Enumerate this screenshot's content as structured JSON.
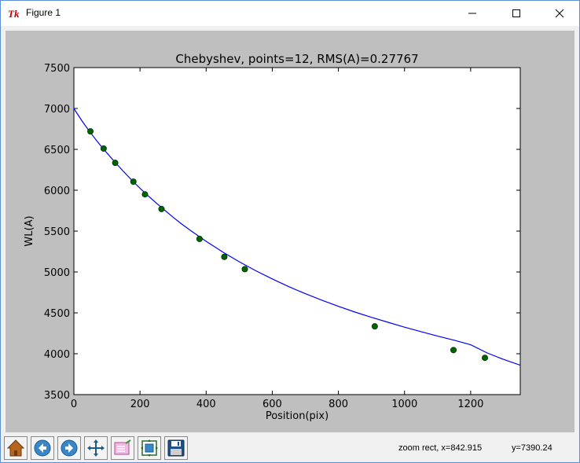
{
  "window": {
    "title": "Figure 1",
    "icon": "tk-feather-icon",
    "controls": [
      "minimize-icon",
      "maximize-icon",
      "close-icon"
    ]
  },
  "toolbar": {
    "buttons": [
      {
        "name": "home-button",
        "icon": "home-icon"
      },
      {
        "name": "back-button",
        "icon": "arrow-left-icon"
      },
      {
        "name": "forward-button",
        "icon": "arrow-right-icon"
      },
      {
        "name": "pan-button",
        "icon": "move-arrows-icon"
      },
      {
        "name": "zoom-button",
        "icon": "zoom-rect-icon"
      },
      {
        "name": "subplots-button",
        "icon": "subplots-icon"
      },
      {
        "name": "save-button",
        "icon": "floppy-disk-icon"
      }
    ],
    "status_left": "zoom rect, x=842.915",
    "status_right": "y=7390.24"
  },
  "colors": {
    "line": "#0000ff",
    "points": "#006400",
    "figure_bg": "#bfbfbf",
    "axes_bg": "#ffffff"
  },
  "chart_data": {
    "type": "scatter",
    "title": "Chebyshev, points=12, RMS(A)=0.27767",
    "xlabel": "Position(pix)",
    "ylabel": "WL(A)",
    "xlim": [
      0,
      1350
    ],
    "ylim": [
      3500,
      7500
    ],
    "xticks": [
      0,
      200,
      400,
      600,
      800,
      1000,
      1200
    ],
    "yticks": [
      3500,
      4000,
      4500,
      5000,
      5500,
      6000,
      6500,
      7000,
      7500
    ],
    "grid": false,
    "series": [
      {
        "kind": "line",
        "x": [
          0,
          25,
          50,
          75,
          100,
          125,
          150,
          175,
          200,
          225,
          250,
          275,
          300,
          325,
          350,
          375,
          400,
          450,
          500,
          550,
          600,
          650,
          700,
          750,
          800,
          850,
          900,
          950,
          1000,
          1050,
          1100,
          1150,
          1200,
          1250,
          1300,
          1350
        ],
        "y": [
          7000,
          6845,
          6705,
          6575,
          6455,
          6340,
          6230,
          6125,
          6025,
          5930,
          5840,
          5755,
          5670,
          5590,
          5515,
          5445,
          5375,
          5245,
          5125,
          5015,
          4915,
          4820,
          4735,
          4655,
          4580,
          4510,
          4445,
          4385,
          4325,
          4270,
          4215,
          4165,
          4110,
          4010,
          3930,
          3860
        ]
      },
      {
        "kind": "points",
        "x": [
          50,
          90,
          125,
          180,
          215,
          265,
          380,
          455,
          517,
          910,
          1148,
          1243
        ],
        "y": [
          6720,
          6510,
          6335,
          6105,
          5950,
          5770,
          5405,
          5185,
          5035,
          4335,
          4045,
          3950
        ]
      }
    ]
  }
}
